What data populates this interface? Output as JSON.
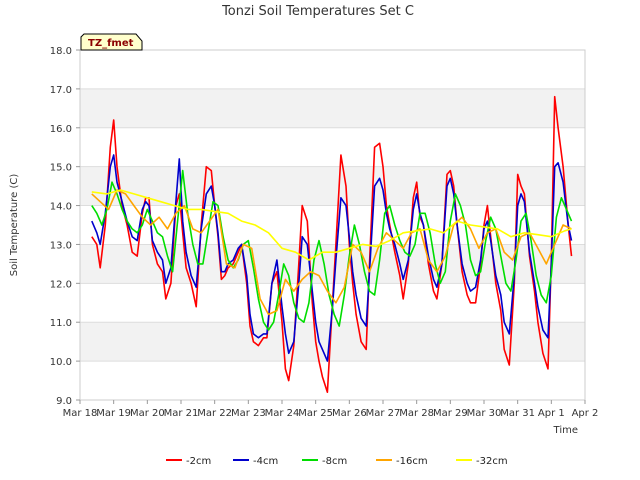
{
  "chart_data": {
    "type": "line",
    "title": "Tonzi Soil Temperatures Set C",
    "xlabel": "Time",
    "ylabel": "Soil Temperature (C)",
    "ylim": [
      9.0,
      18.0
    ],
    "yticks": [
      "9.0",
      "10.0",
      "11.0",
      "12.0",
      "13.0",
      "14.0",
      "15.0",
      "16.0",
      "17.0",
      "18.0"
    ],
    "xlim": [
      "Mar 18",
      "Apr 2"
    ],
    "xticks": [
      "Mar 18",
      "Mar 19",
      "Mar 20",
      "Mar 21",
      "Mar 22",
      "Mar 23",
      "Mar 24",
      "Mar 25",
      "Mar 26",
      "Mar 27",
      "Mar 28",
      "Mar 29",
      "Mar 30",
      "Mar 31",
      "Apr 1",
      "Apr 2"
    ],
    "grid": "horizontal bands",
    "legend_position": "bottom",
    "annotation": "TZ_fmet",
    "x_unit": "days since Mar 18",
    "series": [
      {
        "name": "-2cm",
        "color": "#ff0000",
        "x": [
          0.35,
          0.5,
          0.6,
          0.75,
          0.9,
          1.0,
          1.1,
          1.25,
          1.4,
          1.55,
          1.7,
          1.85,
          1.95,
          2.05,
          2.15,
          2.3,
          2.45,
          2.55,
          2.7,
          2.85,
          2.95,
          3.05,
          3.15,
          3.3,
          3.45,
          3.6,
          3.75,
          3.9,
          4.0,
          4.1,
          4.2,
          4.3,
          4.4,
          4.55,
          4.7,
          4.8,
          4.95,
          5.05,
          5.15,
          5.3,
          5.45,
          5.55,
          5.7,
          5.85,
          6.0,
          6.1,
          6.2,
          6.35,
          6.5,
          6.6,
          6.75,
          6.9,
          7.0,
          7.1,
          7.2,
          7.35,
          7.5,
          7.6,
          7.75,
          7.9,
          8.0,
          8.1,
          8.2,
          8.35,
          8.5,
          8.6,
          8.75,
          8.9,
          9.0,
          9.1,
          9.2,
          9.35,
          9.5,
          9.6,
          9.75,
          9.9,
          10.0,
          10.1,
          10.2,
          10.35,
          10.5,
          10.6,
          10.75,
          10.9,
          11.0,
          11.1,
          11.2,
          11.35,
          11.5,
          11.6,
          11.75,
          11.9,
          12.0,
          12.1,
          12.2,
          12.35,
          12.5,
          12.6,
          12.75,
          12.9,
          13.0,
          13.1,
          13.2,
          13.35,
          13.5,
          13.6,
          13.75,
          13.9,
          14.0,
          14.1,
          14.2,
          14.35,
          14.5,
          14.6
        ],
        "y": [
          13.2,
          13.0,
          12.4,
          13.5,
          15.5,
          16.2,
          15.0,
          14.0,
          13.5,
          12.8,
          12.7,
          13.8,
          14.2,
          14.2,
          13.0,
          12.5,
          12.3,
          11.6,
          12.0,
          14.0,
          14.3,
          13.3,
          12.4,
          12.0,
          11.4,
          13.5,
          15.0,
          14.9,
          14.0,
          13.2,
          12.1,
          12.2,
          12.4,
          12.5,
          12.8,
          13.0,
          12.0,
          10.9,
          10.5,
          10.4,
          10.6,
          10.6,
          12.0,
          12.3,
          11.0,
          9.8,
          9.5,
          10.4,
          12.5,
          14.0,
          13.6,
          11.5,
          10.5,
          10.0,
          9.6,
          9.2,
          11.5,
          13.0,
          15.3,
          14.5,
          13.0,
          12.0,
          11.2,
          10.5,
          10.3,
          12.5,
          15.5,
          15.6,
          15.0,
          14.0,
          13.5,
          12.8,
          12.2,
          11.6,
          12.5,
          14.2,
          14.6,
          13.7,
          13.5,
          12.5,
          11.8,
          11.6,
          12.5,
          14.8,
          14.9,
          14.5,
          13.5,
          12.3,
          11.7,
          11.5,
          11.5,
          12.5,
          13.5,
          14.0,
          13.2,
          12.0,
          11.3,
          10.3,
          9.9,
          12.0,
          14.8,
          14.5,
          14.3,
          12.7,
          11.8,
          11.0,
          10.2,
          9.8,
          12.6,
          16.8,
          16.0,
          15.0,
          13.5,
          12.7
        ]
      },
      {
        "name": "-4cm",
        "color": "#0000cc",
        "x": [
          0.35,
          0.5,
          0.6,
          0.75,
          0.9,
          1.0,
          1.1,
          1.25,
          1.4,
          1.55,
          1.7,
          1.85,
          1.95,
          2.05,
          2.15,
          2.3,
          2.45,
          2.55,
          2.7,
          2.85,
          2.95,
          3.05,
          3.15,
          3.3,
          3.45,
          3.6,
          3.75,
          3.9,
          4.0,
          4.1,
          4.2,
          4.3,
          4.4,
          4.55,
          4.7,
          4.8,
          4.95,
          5.05,
          5.15,
          5.3,
          5.45,
          5.55,
          5.7,
          5.85,
          6.0,
          6.1,
          6.2,
          6.35,
          6.5,
          6.6,
          6.75,
          6.9,
          7.0,
          7.1,
          7.2,
          7.35,
          7.5,
          7.6,
          7.75,
          7.9,
          8.0,
          8.1,
          8.2,
          8.35,
          8.5,
          8.6,
          8.75,
          8.9,
          9.0,
          9.1,
          9.2,
          9.35,
          9.5,
          9.6,
          9.75,
          9.9,
          10.0,
          10.1,
          10.2,
          10.35,
          10.5,
          10.6,
          10.75,
          10.9,
          11.0,
          11.1,
          11.2,
          11.35,
          11.5,
          11.6,
          11.75,
          11.9,
          12.0,
          12.1,
          12.2,
          12.35,
          12.5,
          12.6,
          12.75,
          12.9,
          13.0,
          13.1,
          13.2,
          13.35,
          13.5,
          13.6,
          13.75,
          13.9,
          14.0,
          14.1,
          14.2,
          14.35,
          14.5,
          14.6
        ],
        "y": [
          13.6,
          13.3,
          13.0,
          13.8,
          15.0,
          15.3,
          14.6,
          14.1,
          13.6,
          13.2,
          13.1,
          13.9,
          14.1,
          14.0,
          13.1,
          12.8,
          12.6,
          12.0,
          12.4,
          14.1,
          15.2,
          13.6,
          12.8,
          12.2,
          11.9,
          13.4,
          14.3,
          14.5,
          14.0,
          13.3,
          12.3,
          12.3,
          12.5,
          12.6,
          12.9,
          13.0,
          12.2,
          11.2,
          10.7,
          10.6,
          10.7,
          10.7,
          12.0,
          12.6,
          11.4,
          10.7,
          10.2,
          10.5,
          12.0,
          13.2,
          13.0,
          11.8,
          11.0,
          10.5,
          10.3,
          10.0,
          11.4,
          12.6,
          14.2,
          14.0,
          13.2,
          12.3,
          11.7,
          11.1,
          10.9,
          12.3,
          14.5,
          14.7,
          14.4,
          13.8,
          13.4,
          13.0,
          12.5,
          12.1,
          12.6,
          13.9,
          14.3,
          13.8,
          13.5,
          12.7,
          12.1,
          11.9,
          12.5,
          14.5,
          14.7,
          14.3,
          13.5,
          12.5,
          12.0,
          11.8,
          11.9,
          12.6,
          13.4,
          13.6,
          13.1,
          12.2,
          11.7,
          11.0,
          10.7,
          12.2,
          14.0,
          14.3,
          14.1,
          12.8,
          12.0,
          11.4,
          10.8,
          10.6,
          12.5,
          15.0,
          15.1,
          14.6,
          13.5,
          13.1
        ]
      },
      {
        "name": "-8cm",
        "color": "#00dd00",
        "x": [
          0.35,
          0.5,
          0.65,
          0.8,
          0.95,
          1.1,
          1.25,
          1.4,
          1.55,
          1.7,
          1.85,
          2.0,
          2.15,
          2.3,
          2.45,
          2.6,
          2.75,
          2.9,
          3.05,
          3.2,
          3.35,
          3.5,
          3.65,
          3.8,
          3.95,
          4.1,
          4.25,
          4.4,
          4.55,
          4.7,
          4.85,
          5.0,
          5.15,
          5.3,
          5.45,
          5.6,
          5.75,
          5.9,
          6.05,
          6.2,
          6.35,
          6.5,
          6.65,
          6.8,
          6.95,
          7.1,
          7.25,
          7.4,
          7.55,
          7.7,
          7.85,
          8.0,
          8.15,
          8.3,
          8.45,
          8.6,
          8.75,
          8.9,
          9.05,
          9.2,
          9.35,
          9.5,
          9.65,
          9.8,
          9.95,
          10.1,
          10.25,
          10.4,
          10.55,
          10.7,
          10.85,
          11.0,
          11.15,
          11.3,
          11.45,
          11.6,
          11.75,
          11.9,
          12.05,
          12.2,
          12.35,
          12.5,
          12.65,
          12.8,
          12.95,
          13.1,
          13.25,
          13.4,
          13.55,
          13.7,
          13.85,
          14.0,
          14.15,
          14.3,
          14.45,
          14.6
        ],
        "y": [
          14.0,
          13.8,
          13.5,
          13.9,
          14.6,
          14.3,
          13.9,
          13.6,
          13.4,
          13.3,
          13.5,
          13.9,
          13.6,
          13.3,
          13.2,
          12.7,
          12.3,
          13.6,
          14.9,
          13.8,
          13.0,
          12.5,
          12.5,
          13.3,
          14.1,
          14.0,
          13.2,
          12.6,
          12.4,
          12.6,
          13.0,
          13.1,
          12.4,
          11.6,
          11.0,
          10.8,
          11.0,
          11.7,
          12.5,
          12.2,
          11.5,
          11.1,
          11.0,
          11.5,
          12.6,
          13.1,
          12.5,
          11.7,
          11.2,
          10.9,
          11.7,
          12.7,
          13.5,
          13.0,
          12.3,
          11.8,
          11.7,
          12.6,
          13.8,
          14.0,
          13.5,
          13.1,
          12.8,
          12.7,
          13.0,
          13.8,
          13.8,
          13.3,
          12.5,
          12.0,
          12.3,
          13.6,
          14.3,
          14.0,
          13.5,
          12.6,
          12.2,
          12.3,
          13.1,
          13.7,
          13.4,
          12.7,
          12.0,
          11.8,
          12.6,
          13.6,
          13.8,
          13.1,
          12.2,
          11.7,
          11.5,
          12.2,
          13.7,
          14.2,
          13.9,
          13.6
        ]
      },
      {
        "name": "-16cm",
        "color": "#ffa500",
        "x": [
          0.35,
          0.6,
          0.85,
          1.1,
          1.35,
          1.6,
          1.85,
          2.1,
          2.35,
          2.6,
          2.85,
          3.1,
          3.35,
          3.6,
          3.85,
          4.1,
          4.35,
          4.6,
          4.85,
          5.1,
          5.35,
          5.6,
          5.85,
          6.1,
          6.35,
          6.6,
          6.85,
          7.1,
          7.35,
          7.6,
          7.85,
          8.1,
          8.35,
          8.6,
          8.85,
          9.1,
          9.35,
          9.6,
          9.85,
          10.1,
          10.35,
          10.6,
          10.85,
          11.1,
          11.35,
          11.6,
          11.85,
          12.1,
          12.35,
          12.6,
          12.85,
          13.1,
          13.35,
          13.6,
          13.85,
          14.1,
          14.35,
          14.6
        ],
        "y": [
          14.3,
          14.1,
          13.9,
          14.4,
          14.3,
          14.0,
          13.7,
          13.5,
          13.7,
          13.4,
          13.8,
          14.0,
          13.4,
          13.3,
          13.6,
          13.9,
          12.5,
          12.4,
          13.0,
          12.9,
          11.6,
          11.2,
          11.3,
          12.1,
          11.8,
          12.1,
          12.3,
          12.2,
          11.8,
          11.5,
          11.9,
          13.0,
          12.8,
          12.3,
          12.9,
          13.3,
          13.1,
          12.9,
          13.3,
          13.4,
          12.6,
          12.3,
          12.7,
          13.5,
          13.7,
          13.4,
          12.9,
          13.3,
          13.4,
          12.8,
          12.6,
          13.2,
          13.3,
          12.9,
          12.5,
          13.0,
          13.5,
          13.4
        ]
      },
      {
        "name": "-32cm",
        "color": "#ffff00",
        "x": [
          0.35,
          0.8,
          1.2,
          1.6,
          2.0,
          2.4,
          2.8,
          3.2,
          3.6,
          4.0,
          4.4,
          4.8,
          5.2,
          5.6,
          6.0,
          6.4,
          6.8,
          7.2,
          7.6,
          8.0,
          8.4,
          8.8,
          9.2,
          9.6,
          10.0,
          10.4,
          10.8,
          11.2,
          11.6,
          12.0,
          12.4,
          12.8,
          13.2,
          13.6,
          14.0,
          14.4,
          14.6
        ],
        "y": [
          14.35,
          14.3,
          14.4,
          14.3,
          14.2,
          14.1,
          14.0,
          13.9,
          13.9,
          13.85,
          13.8,
          13.6,
          13.5,
          13.3,
          12.9,
          12.8,
          12.6,
          12.8,
          12.8,
          12.9,
          13.0,
          12.95,
          13.1,
          13.3,
          13.35,
          13.4,
          13.3,
          13.6,
          13.5,
          13.45,
          13.4,
          13.2,
          13.3,
          13.25,
          13.2,
          13.35,
          13.4
        ]
      }
    ]
  }
}
